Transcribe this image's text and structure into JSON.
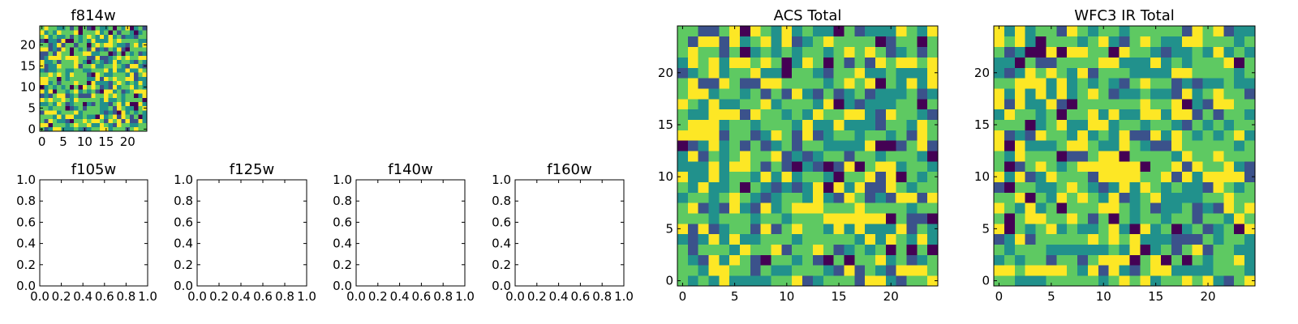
{
  "figure": {
    "colormap": [
      "#440154",
      "#3b528b",
      "#21918c",
      "#5ec962",
      "#fde725"
    ],
    "panels": [
      {
        "id": "f814w",
        "title": "f814w",
        "chart_data": {
          "type": "heatmap",
          "title": "f814w",
          "grid_size": 25,
          "xticks": [
            0,
            5,
            10,
            15,
            20
          ],
          "yticks": [
            0,
            5,
            10,
            15,
            20
          ],
          "xlim": [
            -0.5,
            24.5
          ],
          "ylim": [
            -0.5,
            24.5
          ],
          "seed": 814
        }
      },
      {
        "id": "f105w",
        "title": "f105w",
        "chart_data": {
          "type": "empty",
          "title": "f105w",
          "xticks": [
            "0.0",
            "0.2",
            "0.4",
            "0.6",
            "0.8",
            "1.0"
          ],
          "yticks": [
            "0.0",
            "0.2",
            "0.4",
            "0.6",
            "0.8",
            "1.0"
          ],
          "xlim": [
            0,
            1
          ],
          "ylim": [
            0,
            1
          ]
        }
      },
      {
        "id": "f125w",
        "title": "f125w",
        "chart_data": {
          "type": "empty",
          "title": "f125w",
          "xticks": [
            "0.0",
            "0.2",
            "0.4",
            "0.6",
            "0.8",
            "1.0"
          ],
          "yticks": [
            "0.0",
            "0.2",
            "0.4",
            "0.6",
            "0.8",
            "1.0"
          ],
          "xlim": [
            0,
            1
          ],
          "ylim": [
            0,
            1
          ]
        }
      },
      {
        "id": "f140w",
        "title": "f140w",
        "chart_data": {
          "type": "empty",
          "title": "f140w",
          "xticks": [
            "0.0",
            "0.2",
            "0.4",
            "0.6",
            "0.8",
            "1.0"
          ],
          "yticks": [
            "0.0",
            "0.2",
            "0.4",
            "0.6",
            "0.8",
            "1.0"
          ],
          "xlim": [
            0,
            1
          ],
          "ylim": [
            0,
            1
          ]
        }
      },
      {
        "id": "f160w",
        "title": "f160w",
        "chart_data": {
          "type": "empty",
          "title": "f160w",
          "xticks": [
            "0.0",
            "0.2",
            "0.4",
            "0.6",
            "0.8",
            "1.0"
          ],
          "yticks": [
            "0.0",
            "0.2",
            "0.4",
            "0.6",
            "0.8",
            "1.0"
          ],
          "xlim": [
            0,
            1
          ],
          "ylim": [
            0,
            1
          ]
        }
      },
      {
        "id": "acs-total",
        "title": "ACS Total",
        "chart_data": {
          "type": "heatmap",
          "title": "ACS Total",
          "grid_size": 25,
          "xticks": [
            0,
            5,
            10,
            15,
            20
          ],
          "yticks": [
            0,
            5,
            10,
            15,
            20
          ],
          "xlim": [
            -0.5,
            24.5
          ],
          "ylim": [
            -0.5,
            24.5
          ],
          "seed": 1234
        }
      },
      {
        "id": "wfc3-ir-total",
        "title": "WFC3 IR Total",
        "chart_data": {
          "type": "heatmap",
          "title": "WFC3 IR Total",
          "grid_size": 25,
          "xticks": [
            0,
            5,
            10,
            15,
            20
          ],
          "yticks": [
            0,
            5,
            10,
            15,
            20
          ],
          "xlim": [
            -0.5,
            24.5
          ],
          "ylim": [
            -0.5,
            24.5
          ],
          "seed": 3100,
          "hot_block": {
            "x": [
              11,
              13
            ],
            "y": [
              10,
              11
            ]
          }
        }
      }
    ]
  }
}
